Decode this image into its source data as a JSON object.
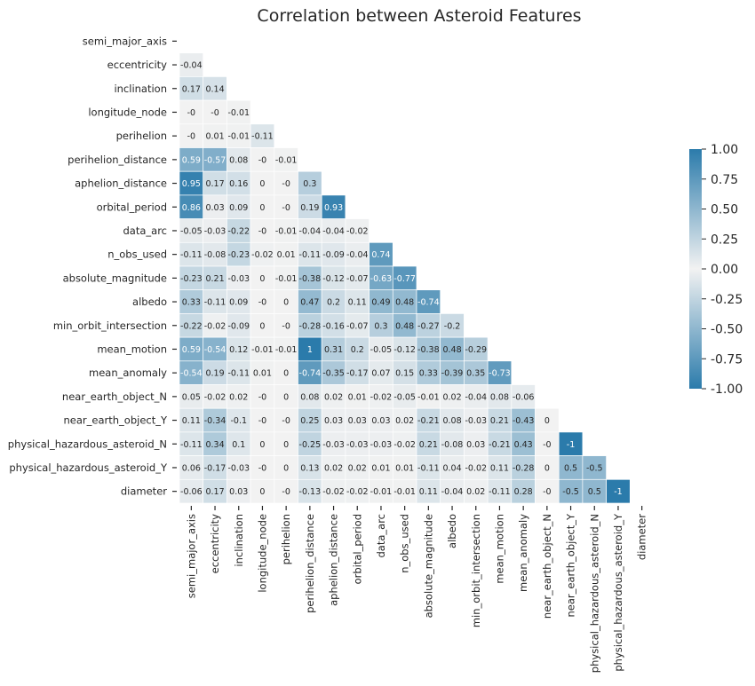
{
  "chart_data": {
    "type": "heatmap",
    "title": "Correlation between Asteroid Features",
    "mask": "upper-triangle-and-diagonal",
    "variables": [
      "semi_major_axis",
      "eccentricity",
      "inclination",
      "longitude_node",
      "perihelion",
      "perihelion_distance",
      "aphelion_distance",
      "orbital_period",
      "data_arc",
      "n_obs_used",
      "absolute_magnitude",
      "albedo",
      "min_orbit_intersection",
      "mean_motion",
      "mean_anomaly",
      "near_earth_object_N",
      "near_earth_object_Y",
      "physical_hazardous_asteroid_N",
      "physical_hazardous_asteroid_Y",
      "diameter"
    ],
    "lower_triangle_values": [
      [],
      [
        "-0.04"
      ],
      [
        "0.17",
        "0.14"
      ],
      [
        "-0",
        "-0",
        "-0.01"
      ],
      [
        "-0",
        "0.01",
        "-0.01",
        "-0.11"
      ],
      [
        "0.59",
        "-0.57",
        "0.08",
        "-0",
        "-0.01"
      ],
      [
        "0.95",
        "0.17",
        "0.16",
        "0",
        "-0",
        "0.3"
      ],
      [
        "0.86",
        "0.03",
        "0.09",
        "0",
        "-0",
        "0.19",
        "0.93"
      ],
      [
        "-0.05",
        "-0.03",
        "-0.22",
        "-0",
        "-0.01",
        "-0.04",
        "-0.04",
        "-0.02"
      ],
      [
        "-0.11",
        "-0.08",
        "-0.23",
        "-0.02",
        "0.01",
        "-0.11",
        "-0.09",
        "-0.04",
        "0.74"
      ],
      [
        "-0.23",
        "0.21",
        "-0.03",
        "0",
        "-0.01",
        "-0.38",
        "-0.12",
        "-0.07",
        "-0.63",
        "-0.77"
      ],
      [
        "0.33",
        "-0.11",
        "0.09",
        "-0",
        "0",
        "0.47",
        "0.2",
        "0.11",
        "0.49",
        "0.48",
        "-0.74"
      ],
      [
        "-0.22",
        "-0.02",
        "-0.09",
        "0",
        "-0",
        "-0.28",
        "-0.16",
        "-0.07",
        "0.3",
        "0.48",
        "-0.27",
        "-0.2"
      ],
      [
        "0.59",
        "-0.54",
        "0.12",
        "-0.01",
        "-0.01",
        "1",
        "0.31",
        "0.2",
        "-0.05",
        "-0.12",
        "-0.38",
        "0.48",
        "-0.29"
      ],
      [
        "-0.54",
        "0.19",
        "-0.11",
        "0.01",
        "0",
        "-0.74",
        "-0.35",
        "-0.17",
        "0.07",
        "0.15",
        "0.33",
        "-0.39",
        "0.35",
        "-0.73"
      ],
      [
        "0.05",
        "-0.02",
        "0.02",
        "-0",
        "0",
        "0.08",
        "0.02",
        "0.01",
        "-0.02",
        "-0.05",
        "-0.01",
        "0.02",
        "-0.04",
        "0.08",
        "-0.06"
      ],
      [
        "0.11",
        "-0.34",
        "-0.1",
        "-0",
        "-0",
        "0.25",
        "0.03",
        "0.03",
        "0.03",
        "0.02",
        "-0.21",
        "0.08",
        "-0.03",
        "0.21",
        "-0.43",
        "0"
      ],
      [
        "-0.11",
        "0.34",
        "0.1",
        "0",
        "0",
        "-0.25",
        "-0.03",
        "-0.03",
        "-0.03",
        "-0.02",
        "0.21",
        "-0.08",
        "0.03",
        "-0.21",
        "0.43",
        "-0",
        "-1"
      ],
      [
        "0.06",
        "-0.17",
        "-0.03",
        "-0",
        "0",
        "0.13",
        "0.02",
        "0.02",
        "0.01",
        "0.01",
        "-0.11",
        "0.04",
        "-0.02",
        "0.11",
        "-0.28",
        "0",
        "0.5",
        "-0.5"
      ],
      [
        "-0.06",
        "0.17",
        "0.03",
        "0",
        "-0",
        "-0.13",
        "-0.02",
        "-0.02",
        "-0.01",
        "-0.01",
        "0.11",
        "-0.04",
        "0.02",
        "-0.11",
        "0.28",
        "-0",
        "-0.5",
        "0.5",
        "-1"
      ]
    ],
    "colorbar": {
      "vmin": -1.0,
      "vmax": 1.0,
      "ticks": [
        "1.00",
        "0.75",
        "0.50",
        "0.25",
        "0.00",
        "-0.25",
        "-0.50",
        "-0.75",
        "-1.00"
      ],
      "colormap": "diverging, magnitude-based",
      "extreme_color": "#2b7bab",
      "center_color": "#f2f2f2"
    }
  }
}
